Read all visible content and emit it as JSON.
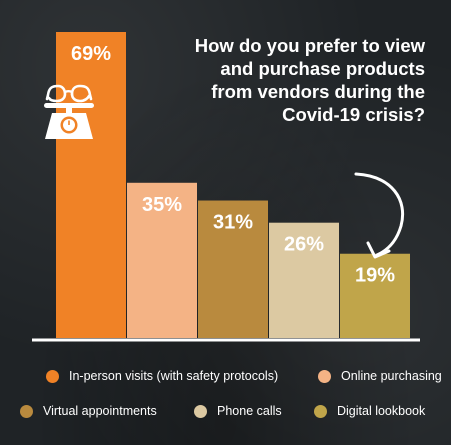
{
  "chart_data": {
    "type": "bar",
    "title": "How do you prefer to view and purchase products from vendors during the Covid-19 crisis?",
    "title_lines": [
      "How do you prefer to view",
      "and purchase products",
      "from vendors during the",
      "Covid-19 crisis?"
    ],
    "categories": [
      "In-person visits (with safety protocols)",
      "Online purchasing",
      "Virtual appointments",
      "Phone calls",
      "Digital lookbook"
    ],
    "values": [
      69,
      35,
      31,
      26,
      19
    ],
    "data_labels": [
      "69%",
      "35%",
      "31%",
      "26%",
      "19%"
    ],
    "unit": "%",
    "colors": [
      "#f08226",
      "#f4b385",
      "#b98a3e",
      "#dcc9a2",
      "#c0a54a"
    ],
    "label_colors": [
      "#ffffff",
      "#ffffff",
      "#ffffff",
      "#ffffff",
      "#ffffff"
    ],
    "ylim": [
      0,
      69
    ],
    "legend_position": "bottom",
    "grid": false,
    "background_color": "#1f2326",
    "axis_color": "#ffffff",
    "icon": "eyeglasses-on-scale-icon",
    "decoration": "curved-arrow-icon"
  }
}
